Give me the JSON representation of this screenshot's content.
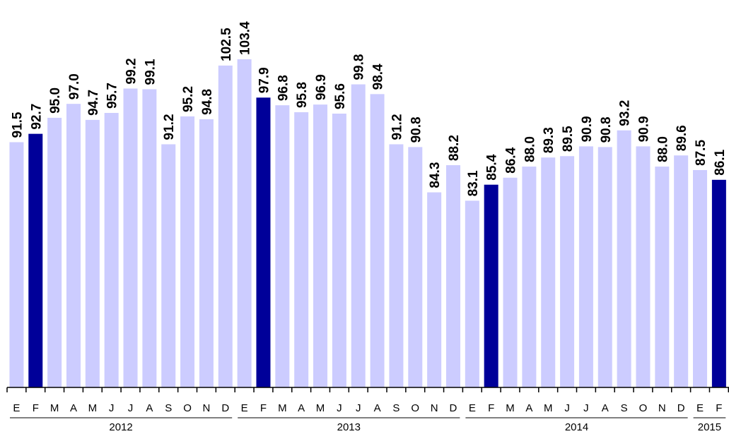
{
  "chart_data": {
    "type": "bar",
    "categories": [
      "E",
      "F",
      "M",
      "A",
      "M",
      "J",
      "J",
      "A",
      "S",
      "O",
      "N",
      "D",
      "E",
      "F",
      "M",
      "A",
      "M",
      "J",
      "J",
      "A",
      "S",
      "O",
      "N",
      "D",
      "E",
      "F",
      "M",
      "A",
      "M",
      "J",
      "J",
      "A",
      "S",
      "O",
      "N",
      "D",
      "E",
      "F"
    ],
    "values": [
      91.5,
      92.7,
      95.0,
      97.0,
      94.7,
      95.7,
      99.2,
      99.1,
      91.2,
      95.2,
      94.8,
      102.5,
      103.4,
      97.9,
      96.8,
      95.8,
      96.9,
      95.6,
      99.8,
      98.4,
      91.2,
      90.8,
      84.3,
      88.2,
      83.1,
      85.4,
      86.4,
      88.0,
      89.3,
      89.5,
      90.9,
      90.8,
      93.2,
      90.9,
      88.0,
      89.6,
      87.5,
      86.1
    ],
    "value_labels": [
      "91.5",
      "92.7",
      "95.0",
      "97.0",
      "94.7",
      "95.7",
      "99.2",
      "99.1",
      "91.2",
      "95.2",
      "94.8",
      "102.5",
      "103.4",
      "97.9",
      "96.8",
      "95.8",
      "96.9",
      "95.6",
      "99.8",
      "98.4",
      "91.2",
      "90.8",
      "84.3",
      "88.2",
      "83.1",
      "85.4",
      "86.4",
      "88.0",
      "89.3",
      "89.5",
      "90.9",
      "90.8",
      "93.2",
      "90.9",
      "88.0",
      "89.6",
      "87.5",
      "86.1"
    ],
    "highlighted": [
      false,
      true,
      false,
      false,
      false,
      false,
      false,
      false,
      false,
      false,
      false,
      false,
      false,
      true,
      false,
      false,
      false,
      false,
      false,
      false,
      false,
      false,
      false,
      false,
      false,
      true,
      false,
      false,
      false,
      false,
      false,
      false,
      false,
      false,
      false,
      false,
      false,
      true
    ],
    "year_groups": [
      {
        "label": "2012",
        "start": 0,
        "end": 11
      },
      {
        "label": "2013",
        "start": 12,
        "end": 23
      },
      {
        "label": "2014",
        "start": 24,
        "end": 35
      },
      {
        "label": "2015",
        "start": 36,
        "end": 37
      }
    ],
    "colors": {
      "normal": "#ccccff",
      "highlight": "#000099"
    },
    "ylim": [
      56.3,
      103.4
    ],
    "title": "",
    "xlabel": "",
    "ylabel": ""
  }
}
